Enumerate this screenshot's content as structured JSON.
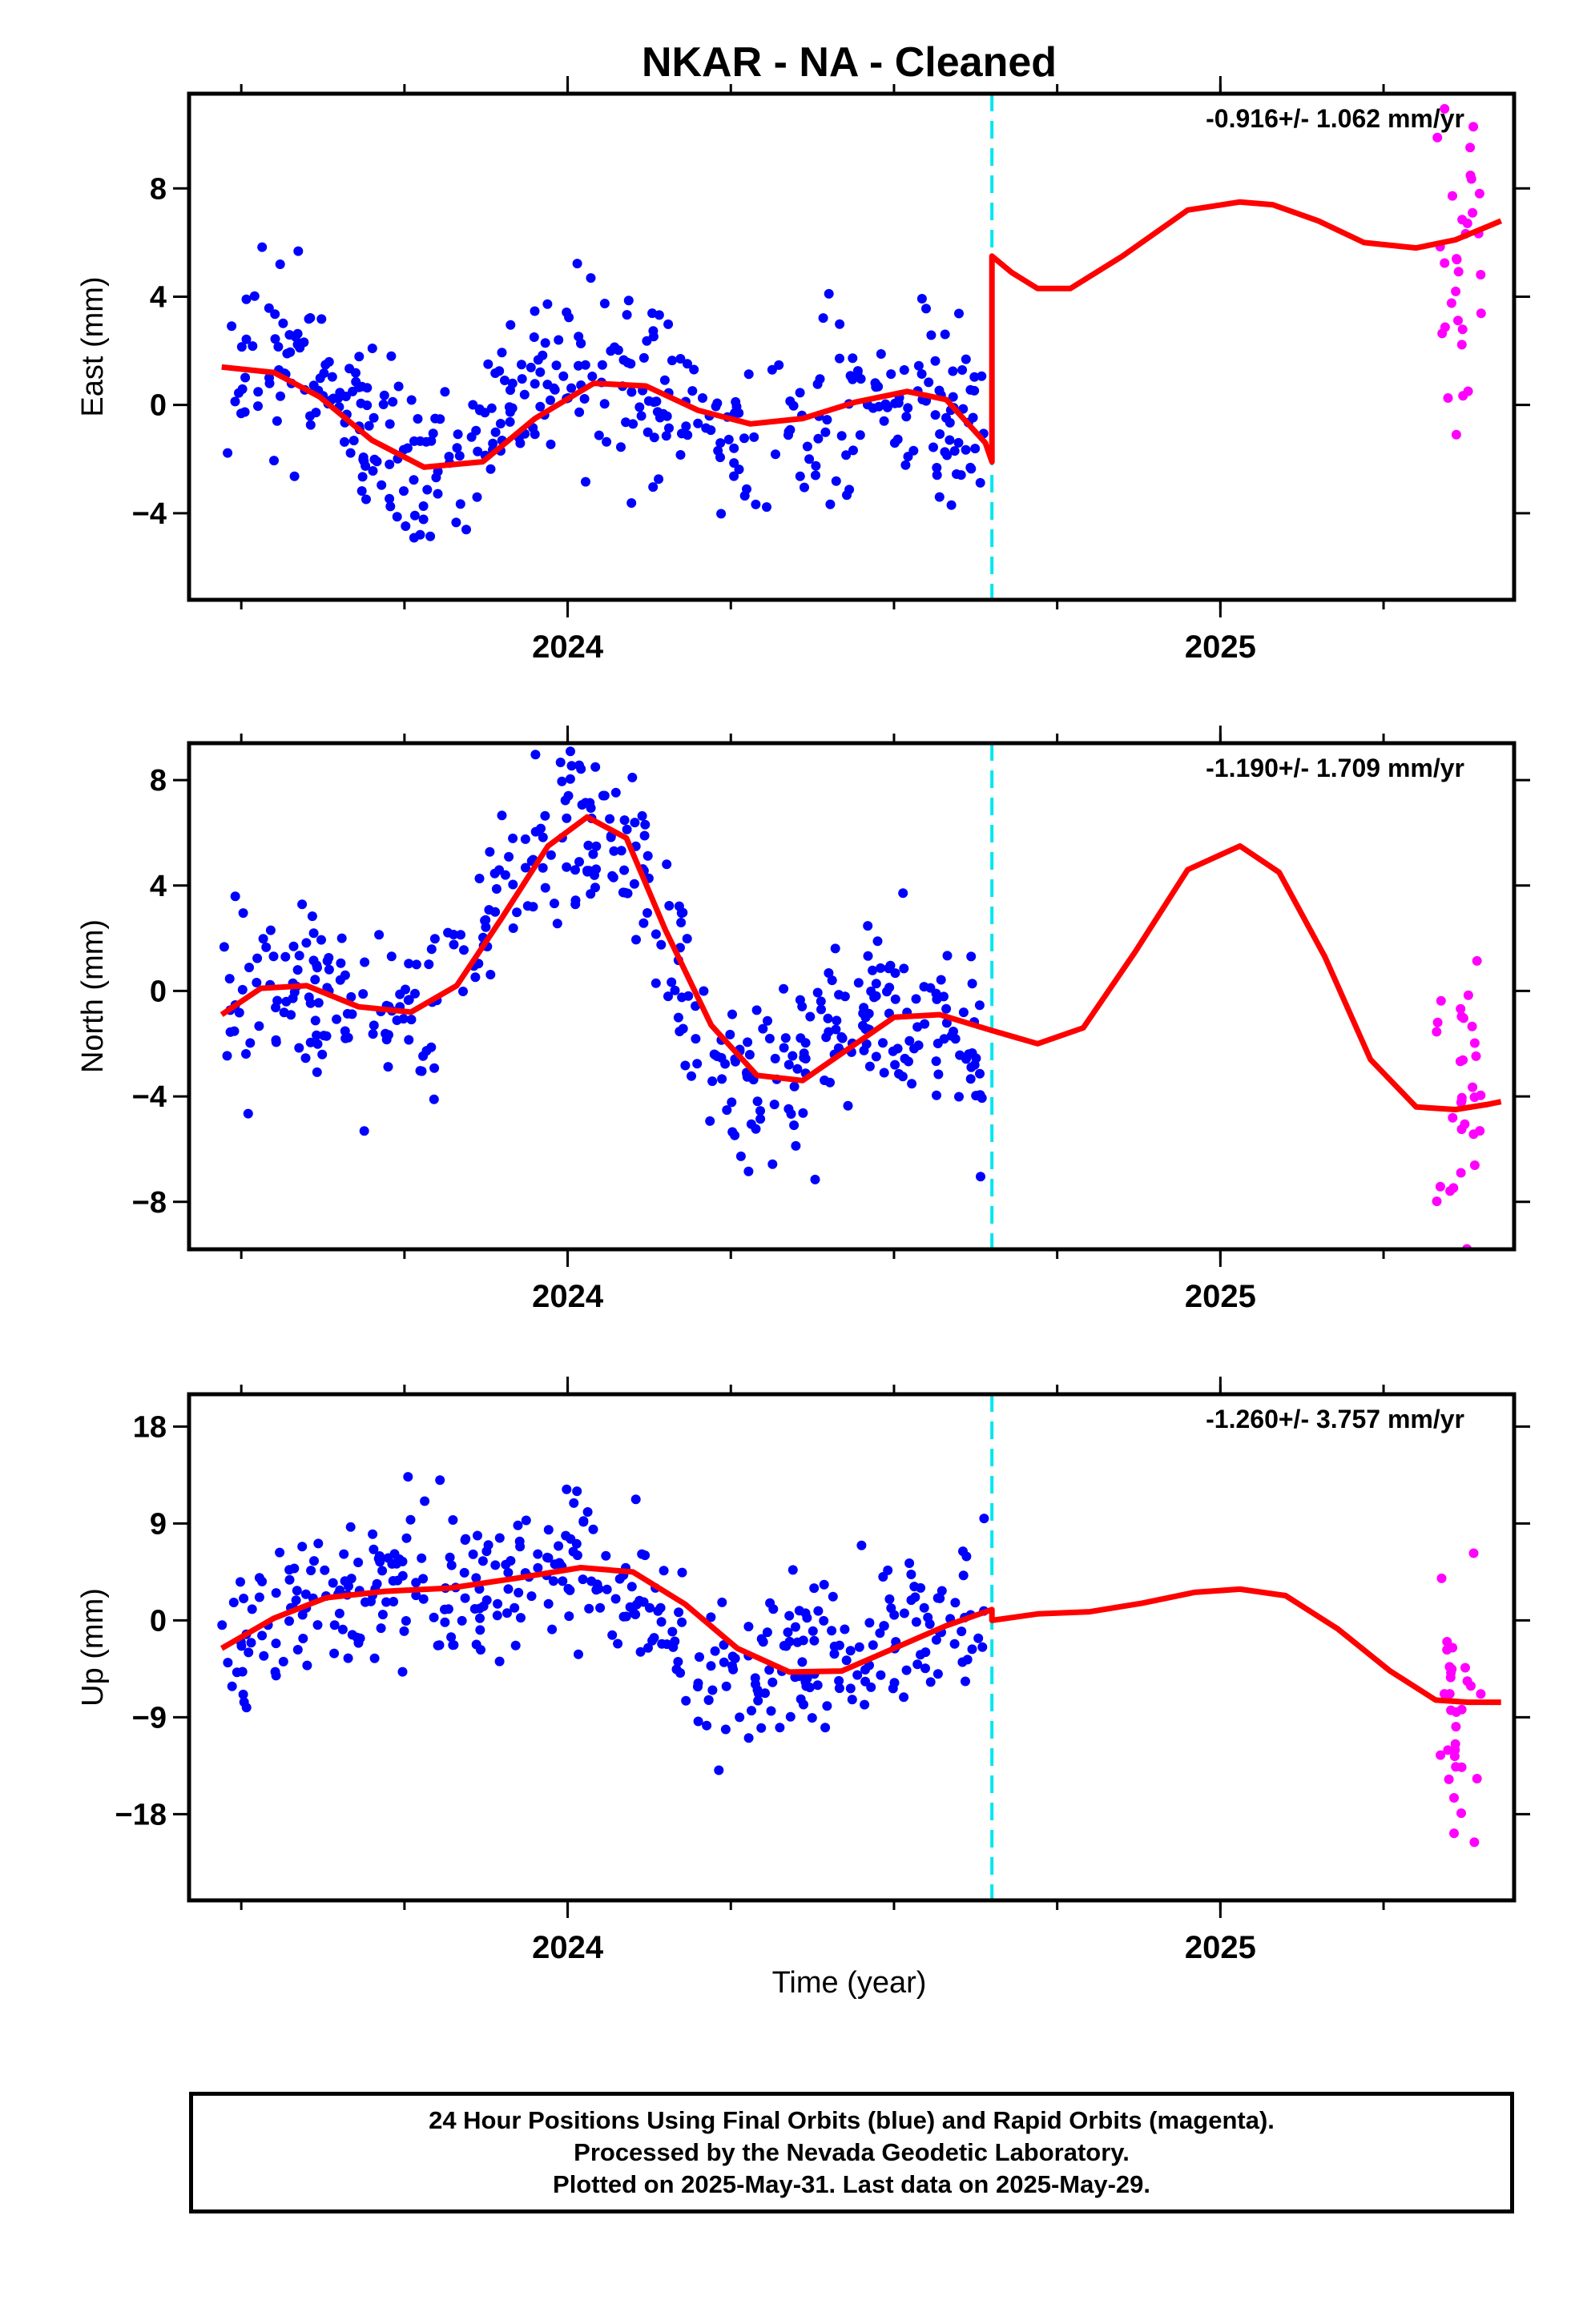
{
  "title": "NKAR  - NA - Cleaned",
  "xlabel": "Time (year)",
  "colors": {
    "final_orbits": "#0000ff",
    "rapid_orbits": "#ff00ff",
    "model": "#ff0000",
    "equipment_change": "#00e5ee"
  },
  "footer": {
    "line1": "24 Hour Positions Using Final Orbits (blue) and Rapid Orbits (magenta).",
    "line2": "Processed by the Nevada Geodetic Laboratory.",
    "line3": "Plotted on 2025-May-31. Last data on 2025-May-29."
  },
  "chart_data": [
    {
      "type": "scatter",
      "component": "east",
      "ylabel": "East (mm)",
      "rate_label": "-0.916+/- 1.062 mm/yr",
      "xlim": [
        2023.42,
        2025.45
      ],
      "ylim": [
        -7.2,
        11.5
      ],
      "yticks": [
        -4,
        0,
        4,
        8
      ],
      "xticks": [
        2024,
        2025
      ],
      "x_minor_step": 0.25,
      "grid": false,
      "vline_x": 2024.65,
      "model_curve": {
        "x": [
          2023.47,
          2023.55,
          2023.62,
          2023.7,
          2023.78,
          2023.87,
          2023.95,
          2024.04,
          2024.12,
          2024.2,
          2024.28,
          2024.36,
          2024.44,
          2024.52,
          2024.58,
          2024.64,
          2024.65,
          2024.65,
          2024.68,
          2024.72,
          2024.77,
          2024.85,
          2024.95,
          2025.03,
          2025.08,
          2025.15,
          2025.22,
          2025.3,
          2025.36,
          2025.4,
          2025.43
        ],
        "y": [
          1.4,
          1.2,
          0.3,
          -1.3,
          -2.3,
          -2.1,
          -0.5,
          0.8,
          0.7,
          -0.2,
          -0.7,
          -0.5,
          0.1,
          0.5,
          0.2,
          -1.4,
          -2.1,
          5.5,
          4.9,
          4.3,
          4.3,
          5.5,
          7.2,
          7.5,
          7.4,
          6.8,
          6.0,
          5.8,
          6.1,
          6.5,
          6.8
        ]
      },
      "series": [
        {
          "orbit": "final",
          "trend_mm": [
            1.0,
            1.6,
            1.5,
            1.2,
            0.4,
            -0.8,
            -1.9,
            -2.3,
            -2.1,
            -1.2,
            -0.2,
            0.5,
            0.9,
            0.9,
            0.5,
            0.1,
            -0.3,
            -0.7,
            -0.8,
            -0.7,
            -0.4,
            0.1,
            0.4,
            0.5,
            0.1,
            -0.8,
            -1.9
          ],
          "scatter_mm": 1.6,
          "x_range": [
            2023.47,
            2024.64
          ],
          "count": 410
        },
        {
          "orbit": "rapid",
          "trend_mm": [
            6.0,
            6.5
          ],
          "scatter_mm": 3.5,
          "x_range": [
            2025.33,
            2025.4
          ],
          "count": 32
        }
      ]
    },
    {
      "type": "scatter",
      "component": "north",
      "ylabel": "North (mm)",
      "rate_label": "-1.190+/- 1.709 mm/yr",
      "xlim": [
        2023.42,
        2025.45
      ],
      "ylim": [
        -9.8,
        9.4
      ],
      "yticks": [
        -8,
        -4,
        0,
        4,
        8
      ],
      "xticks": [
        2024,
        2025
      ],
      "x_minor_step": 0.25,
      "grid": false,
      "vline_x": 2024.65,
      "model_curve": {
        "x": [
          2023.47,
          2023.53,
          2023.6,
          2023.68,
          2023.76,
          2023.83,
          2023.9,
          2023.97,
          2024.03,
          2024.09,
          2024.15,
          2024.22,
          2024.29,
          2024.36,
          2024.43,
          2024.5,
          2024.57,
          2024.65,
          2024.72,
          2024.79,
          2024.87,
          2024.95,
          2025.03,
          2025.09,
          2025.16,
          2025.23,
          2025.3,
          2025.36,
          2025.41,
          2025.43
        ],
        "y": [
          -0.9,
          0.1,
          0.2,
          -0.6,
          -0.8,
          0.2,
          2.8,
          5.5,
          6.6,
          5.8,
          2.3,
          -1.3,
          -3.2,
          -3.4,
          -2.2,
          -1.0,
          -0.9,
          -1.5,
          -2.0,
          -1.4,
          1.5,
          4.6,
          5.5,
          4.5,
          1.3,
          -2.6,
          -4.4,
          -4.5,
          -4.3,
          -4.2
        ]
      },
      "series": [
        {
          "orbit": "final",
          "trend_mm": [
            -1.3,
            0.2,
            0.3,
            0.2,
            -0.3,
            -0.8,
            -0.9,
            -0.4,
            0.8,
            2.6,
            4.4,
            5.8,
            6.6,
            6.3,
            4.6,
            1.8,
            -1.0,
            -2.9,
            -3.4,
            -3.2,
            -2.4,
            -1.6,
            -1.0,
            -0.8,
            -1.0,
            -1.6,
            -3.4
          ],
          "scatter_mm": 1.8,
          "x_range": [
            2023.47,
            2024.64
          ],
          "count": 420
        },
        {
          "orbit": "rapid",
          "trend_mm": [
            -4.3,
            -4.4
          ],
          "scatter_mm": 3.6,
          "x_range": [
            2025.33,
            2025.4
          ],
          "count": 32
        }
      ]
    },
    {
      "type": "scatter",
      "component": "up",
      "ylabel": "Up (mm)",
      "rate_label": "-1.260+/- 3.757 mm/yr",
      "xlim": [
        2023.42,
        2025.45
      ],
      "ylim": [
        -26,
        21
      ],
      "yticks": [
        -18,
        -9,
        0,
        9,
        18
      ],
      "xticks": [
        2024,
        2025
      ],
      "x_minor_step": 0.25,
      "grid": false,
      "vline_x": 2024.65,
      "model_curve": {
        "x": [
          2023.47,
          2023.55,
          2023.63,
          2023.72,
          2023.82,
          2023.92,
          2024.02,
          2024.1,
          2024.18,
          2024.26,
          2024.34,
          2024.42,
          2024.5,
          2024.58,
          2024.65,
          2024.65,
          2024.72,
          2024.8,
          2024.88,
          2024.96,
          2025.03,
          2025.1,
          2025.18,
          2025.26,
          2025.33,
          2025.38,
          2025.43
        ],
        "y": [
          -2.6,
          0.2,
          2.1,
          2.7,
          3.0,
          3.9,
          4.9,
          4.5,
          1.5,
          -2.6,
          -4.8,
          -4.7,
          -2.6,
          -0.5,
          1.0,
          0.0,
          0.6,
          0.8,
          1.6,
          2.6,
          2.9,
          2.3,
          -0.8,
          -4.7,
          -7.4,
          -7.6,
          -7.6
        ]
      },
      "series": [
        {
          "orbit": "final",
          "trend_mm": [
            -3.0,
            -0.8,
            0.8,
            1.8,
            2.4,
            2.7,
            2.9,
            3.1,
            3.5,
            4.0,
            4.5,
            4.9,
            4.8,
            3.8,
            1.8,
            -0.6,
            -2.6,
            -3.9,
            -4.6,
            -4.7,
            -4.3,
            -3.4,
            -2.5,
            -1.6,
            -0.8,
            -0.1,
            0.6
          ],
          "scatter_mm": 3.6,
          "x_range": [
            2023.47,
            2024.64
          ],
          "count": 400
        },
        {
          "orbit": "rapid",
          "trend_mm": [
            -6.5,
            -7.5
          ],
          "scatter_mm": 6.5,
          "x_range": [
            2025.33,
            2025.4
          ],
          "count": 32
        }
      ]
    }
  ]
}
